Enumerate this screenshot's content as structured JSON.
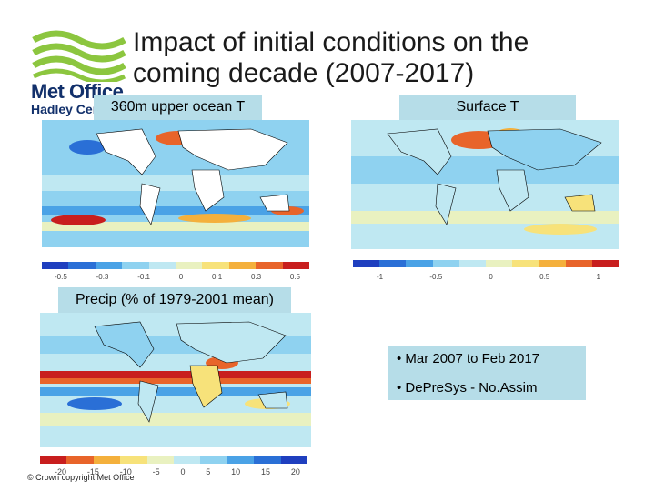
{
  "slide": {
    "title_line1": "Impact of initial conditions on the",
    "title_line2": "coming decade (2007-2017)",
    "logo": {
      "name": "Met Office",
      "sub": "Hadley Centre"
    },
    "panels": {
      "ocean": {
        "label": "360m upper ocean T",
        "ticks": [
          "-0.5",
          "-0.3",
          "-0.1",
          "0",
          "0.1",
          "0.3",
          "0.5"
        ]
      },
      "surface": {
        "label": "Surface T",
        "ticks": [
          "-1",
          "-0.5",
          "0",
          "0.5",
          "1"
        ]
      },
      "precip": {
        "label": "Precip (% of 1979-2001 mean)",
        "ticks": [
          "-20",
          "-15",
          "-10",
          "-5",
          "0",
          "5",
          "10",
          "15",
          "20"
        ]
      }
    },
    "bullets": [
      "• Mar 2007 to Feb 2017",
      "• DePreSys - No.Assim"
    ],
    "copyright": "© Crown copyright   Met Office"
  },
  "colors": {
    "label_bg": "#b6dde8",
    "colorbar": [
      "#1f3fbf",
      "#2a6fd6",
      "#4aa2e6",
      "#8fd2f0",
      "#bfe8f2",
      "#e9f1c0",
      "#f7e27a",
      "#f4b03c",
      "#e8642a",
      "#c81e1e"
    ]
  }
}
